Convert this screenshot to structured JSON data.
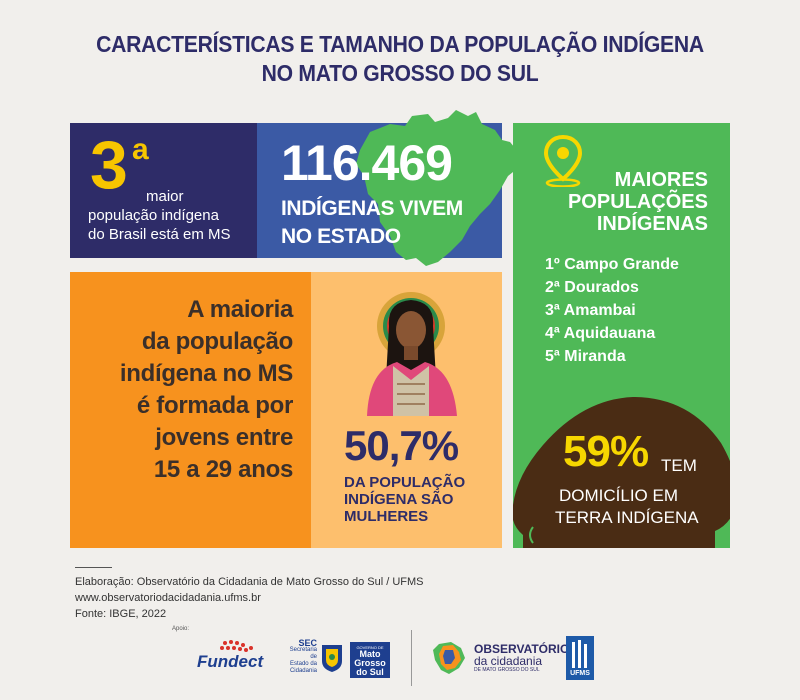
{
  "title": {
    "line1": "CARACTERÍSTICAS E TAMANHO DA POPULAÇÃO INDÍGENA",
    "line2": "NO MATO GROSSO DO SUL"
  },
  "rank_panel": {
    "number": "3",
    "superscript": "a",
    "line1": "maior",
    "line2": "população indígena",
    "line3": "do Brasil está em MS"
  },
  "population_panel": {
    "number": "116.469",
    "line1": "INDÍGENAS VIVEM",
    "line2": "NO ESTADO"
  },
  "youth_panel": {
    "lines": [
      "A maioria",
      "da população",
      "indígena no MS",
      "é formada por",
      "jovens entre",
      "15 a 29 anos"
    ]
  },
  "women_panel": {
    "percent": "50,7%",
    "lines": [
      "DA POPULAÇÃO",
      "INDÍGENA SÃO",
      "MULHERES"
    ]
  },
  "cities_panel": {
    "title_lines": [
      "MAIORES",
      "POPULAÇÕES",
      "INDÍGENAS"
    ],
    "cities": [
      "1º Campo Grande",
      "2ª Dourados",
      "3ª Amambai",
      "4ª Aquidauana",
      "5ª Miranda"
    ],
    "territory_percent": "59%",
    "territory_tem": "TEM",
    "territory_line1": "DOMICÍLIO EM",
    "territory_line2": "TERRA INDÍGENA"
  },
  "footer": {
    "credit": "Elaboração: Observatório da Cidadania de Mato Grosso do Sul / UFMS",
    "website": "www.observatoriodacidadania.ufms.br",
    "source": "Fonte: IBGE, 2022",
    "apoio": "Apoio:",
    "fundect": "Fundect",
    "sec_title": "SEC",
    "sec_lines": [
      "Secretaria de",
      "Estado da",
      "Cidadania"
    ],
    "gov_small": "GOVERNO DE",
    "gov_lines": [
      "Mato",
      "Grosso",
      "do Sul"
    ],
    "obs_line1": "OBSERVATÓRIO",
    "obs_line2": "da cidadania",
    "obs_line3": "DE MATO GROSSO DO SUL",
    "ufms": "UFMS"
  },
  "colors": {
    "navy": "#2e2c68",
    "blue": "#3b5aa5",
    "orange": "#f7921e",
    "light_orange": "#fdbf6d",
    "green": "#4fb957",
    "brown": "#4a2c14",
    "yellow": "#f7c500"
  },
  "icons": [
    "location-pin-icon",
    "ms-state-map-icon",
    "indigenous-woman-illustration"
  ]
}
